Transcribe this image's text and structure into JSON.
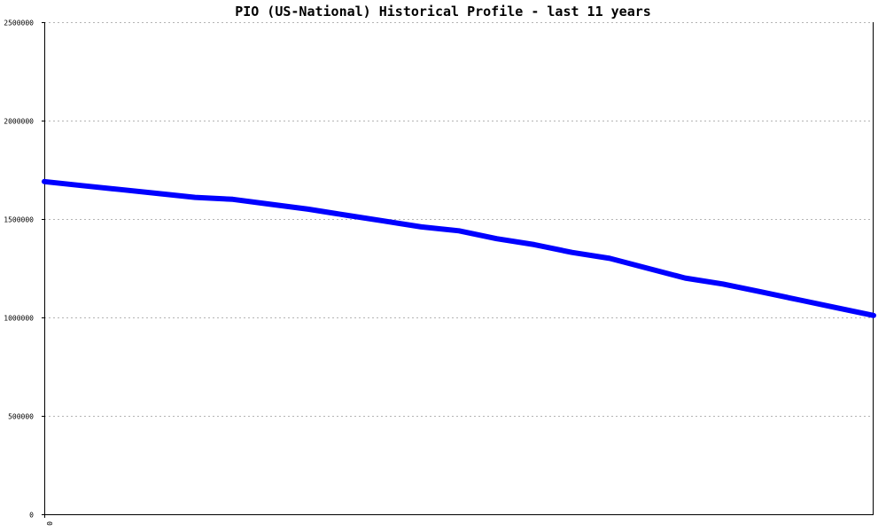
{
  "chart_data": {
    "type": "line",
    "title": "PIO (US-National) Historical Profile - last 11 years",
    "xlabel": "",
    "ylabel": "",
    "ylim": [
      0,
      2500000
    ],
    "yticks": [
      {
        "value": 0,
        "label": "0"
      },
      {
        "value": 500000,
        "label": "500000"
      },
      {
        "value": 1000000,
        "label": "1000000"
      },
      {
        "value": 1500000,
        "label": "1500000"
      },
      {
        "value": 2000000,
        "label": "2000000"
      },
      {
        "value": 2500000,
        "label": "2500000"
      }
    ],
    "xticks": [
      {
        "value": 0,
        "label": "0"
      }
    ],
    "xlim": [
      0,
      11
    ],
    "grid": true,
    "legend": "none",
    "series": [
      {
        "color": "#0000ff",
        "x": [
          0,
          0.5,
          1,
          1.5,
          2,
          2.5,
          3,
          3.5,
          4,
          4.5,
          5,
          5.5,
          6,
          6.5,
          7,
          7.5,
          8,
          8.5,
          9,
          9.5,
          10,
          10.5,
          11
        ],
        "values": [
          1690000,
          1670000,
          1650000,
          1630000,
          1610000,
          1600000,
          1575000,
          1550000,
          1520000,
          1490000,
          1460000,
          1440000,
          1400000,
          1370000,
          1330000,
          1300000,
          1250000,
          1200000,
          1170000,
          1130000,
          1090000,
          1050000,
          1010000
        ]
      }
    ]
  }
}
